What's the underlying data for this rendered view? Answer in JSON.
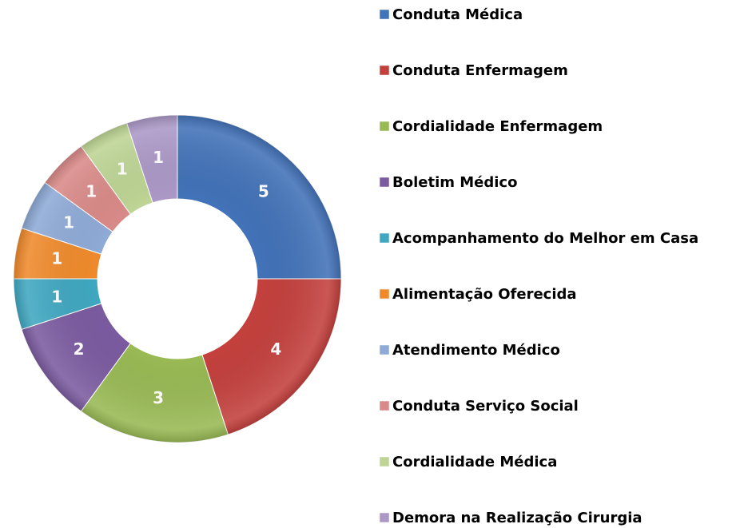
{
  "chart_data": {
    "type": "donut",
    "categories": [
      "Conduta Médica",
      "Conduta Enfermagem",
      "Cordialidade Enfermagem",
      "Boletim Médico",
      "Acompanhamento do Melhor em Casa",
      "Alimentação Oferecida",
      "Atendimento Médico",
      "Conduta Serviço Social",
      "Cordialidade Médica",
      "Demora na Realização Cirurgia"
    ],
    "values": [
      5,
      4,
      3,
      2,
      1,
      1,
      1,
      1,
      1,
      1
    ],
    "colors": [
      "#4272b8",
      "#c3403d",
      "#98b954",
      "#7b5ba0",
      "#3fa7c0",
      "#ef8a2c",
      "#8eaad6",
      "#d98a88",
      "#bdd494",
      "#ab98c6"
    ],
    "legend": "right"
  }
}
